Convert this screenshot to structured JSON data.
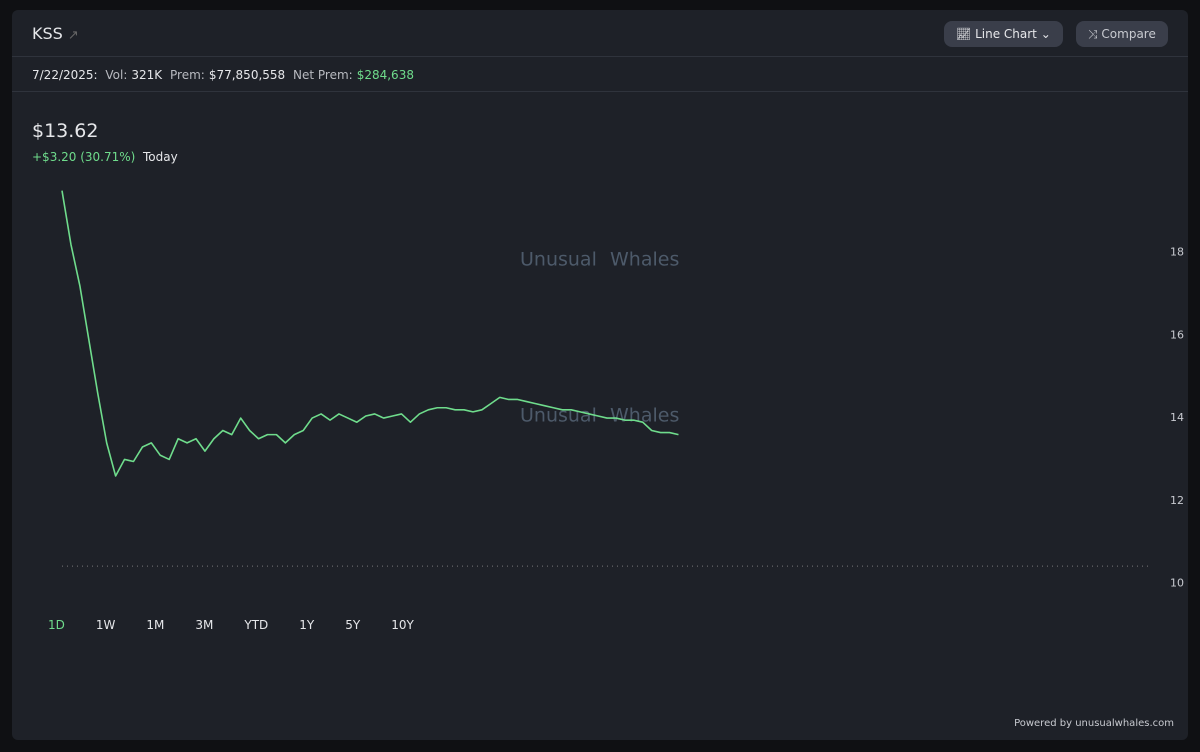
{
  "header": {
    "ticker": "KSS",
    "buttons": [
      "Line Chart",
      "Compare"
    ]
  },
  "stats": {
    "date": "7/22/2025:",
    "vol_label": "Vol:",
    "vol": "321K",
    "prem_label": "Prem:",
    "prem": "$77,850,558",
    "net_prem_label": "Net Prem:",
    "net_prem": "$284,638"
  },
  "price": {
    "last": "$13.62",
    "change": "+$3.20 (30.71%)",
    "period": "Today"
  },
  "watermark": [
    "Unusual",
    "Whales"
  ],
  "ranges": [
    "1D",
    "1W",
    "1M",
    "3M",
    "YTD",
    "1Y",
    "5Y",
    "10Y"
  ],
  "active_range": "1D",
  "footer": "Powered by unusualwhales.com",
  "chart_data": {
    "type": "line",
    "color": "#6fdc8c",
    "x": [
      0,
      1,
      2,
      3,
      4,
      5,
      6,
      7,
      8,
      9,
      10,
      11,
      12,
      13,
      14,
      15,
      16,
      17,
      18,
      19,
      20,
      21,
      22,
      23,
      24,
      25,
      26,
      27,
      28,
      29,
      30,
      31,
      32,
      33,
      34,
      35,
      36,
      37,
      38,
      39,
      40,
      41,
      42,
      43,
      44,
      45,
      46,
      47,
      48,
      49,
      50,
      51,
      52,
      53,
      54,
      55,
      56,
      57,
      58,
      59,
      60,
      61,
      62,
      63,
      64,
      65,
      66,
      67,
      68,
      69
    ],
    "values": [
      19.5,
      18.2,
      17.2,
      15.9,
      14.6,
      13.4,
      12.6,
      13.0,
      12.95,
      13.3,
      13.4,
      13.1,
      13.0,
      13.5,
      13.4,
      13.5,
      13.2,
      13.5,
      13.7,
      13.6,
      14.0,
      13.7,
      13.5,
      13.6,
      13.6,
      13.4,
      13.6,
      13.7,
      14.0,
      14.1,
      13.95,
      14.1,
      14.0,
      13.9,
      14.05,
      14.1,
      14.0,
      14.05,
      14.1,
      13.9,
      14.1,
      14.2,
      14.25,
      14.25,
      14.2,
      14.2,
      14.15,
      14.2,
      14.35,
      14.5,
      14.45,
      14.45,
      14.4,
      14.35,
      14.3,
      14.25,
      14.2,
      14.2,
      14.15,
      14.1,
      14.05,
      14.0,
      14.0,
      13.95,
      13.95,
      13.9,
      13.7,
      13.65,
      13.65,
      13.6
    ],
    "xlim": [
      0,
      122
    ],
    "ylim": [
      9.6,
      20
    ],
    "yticks": [
      10,
      12,
      14,
      16,
      18
    ],
    "baseline": 10.42
  }
}
